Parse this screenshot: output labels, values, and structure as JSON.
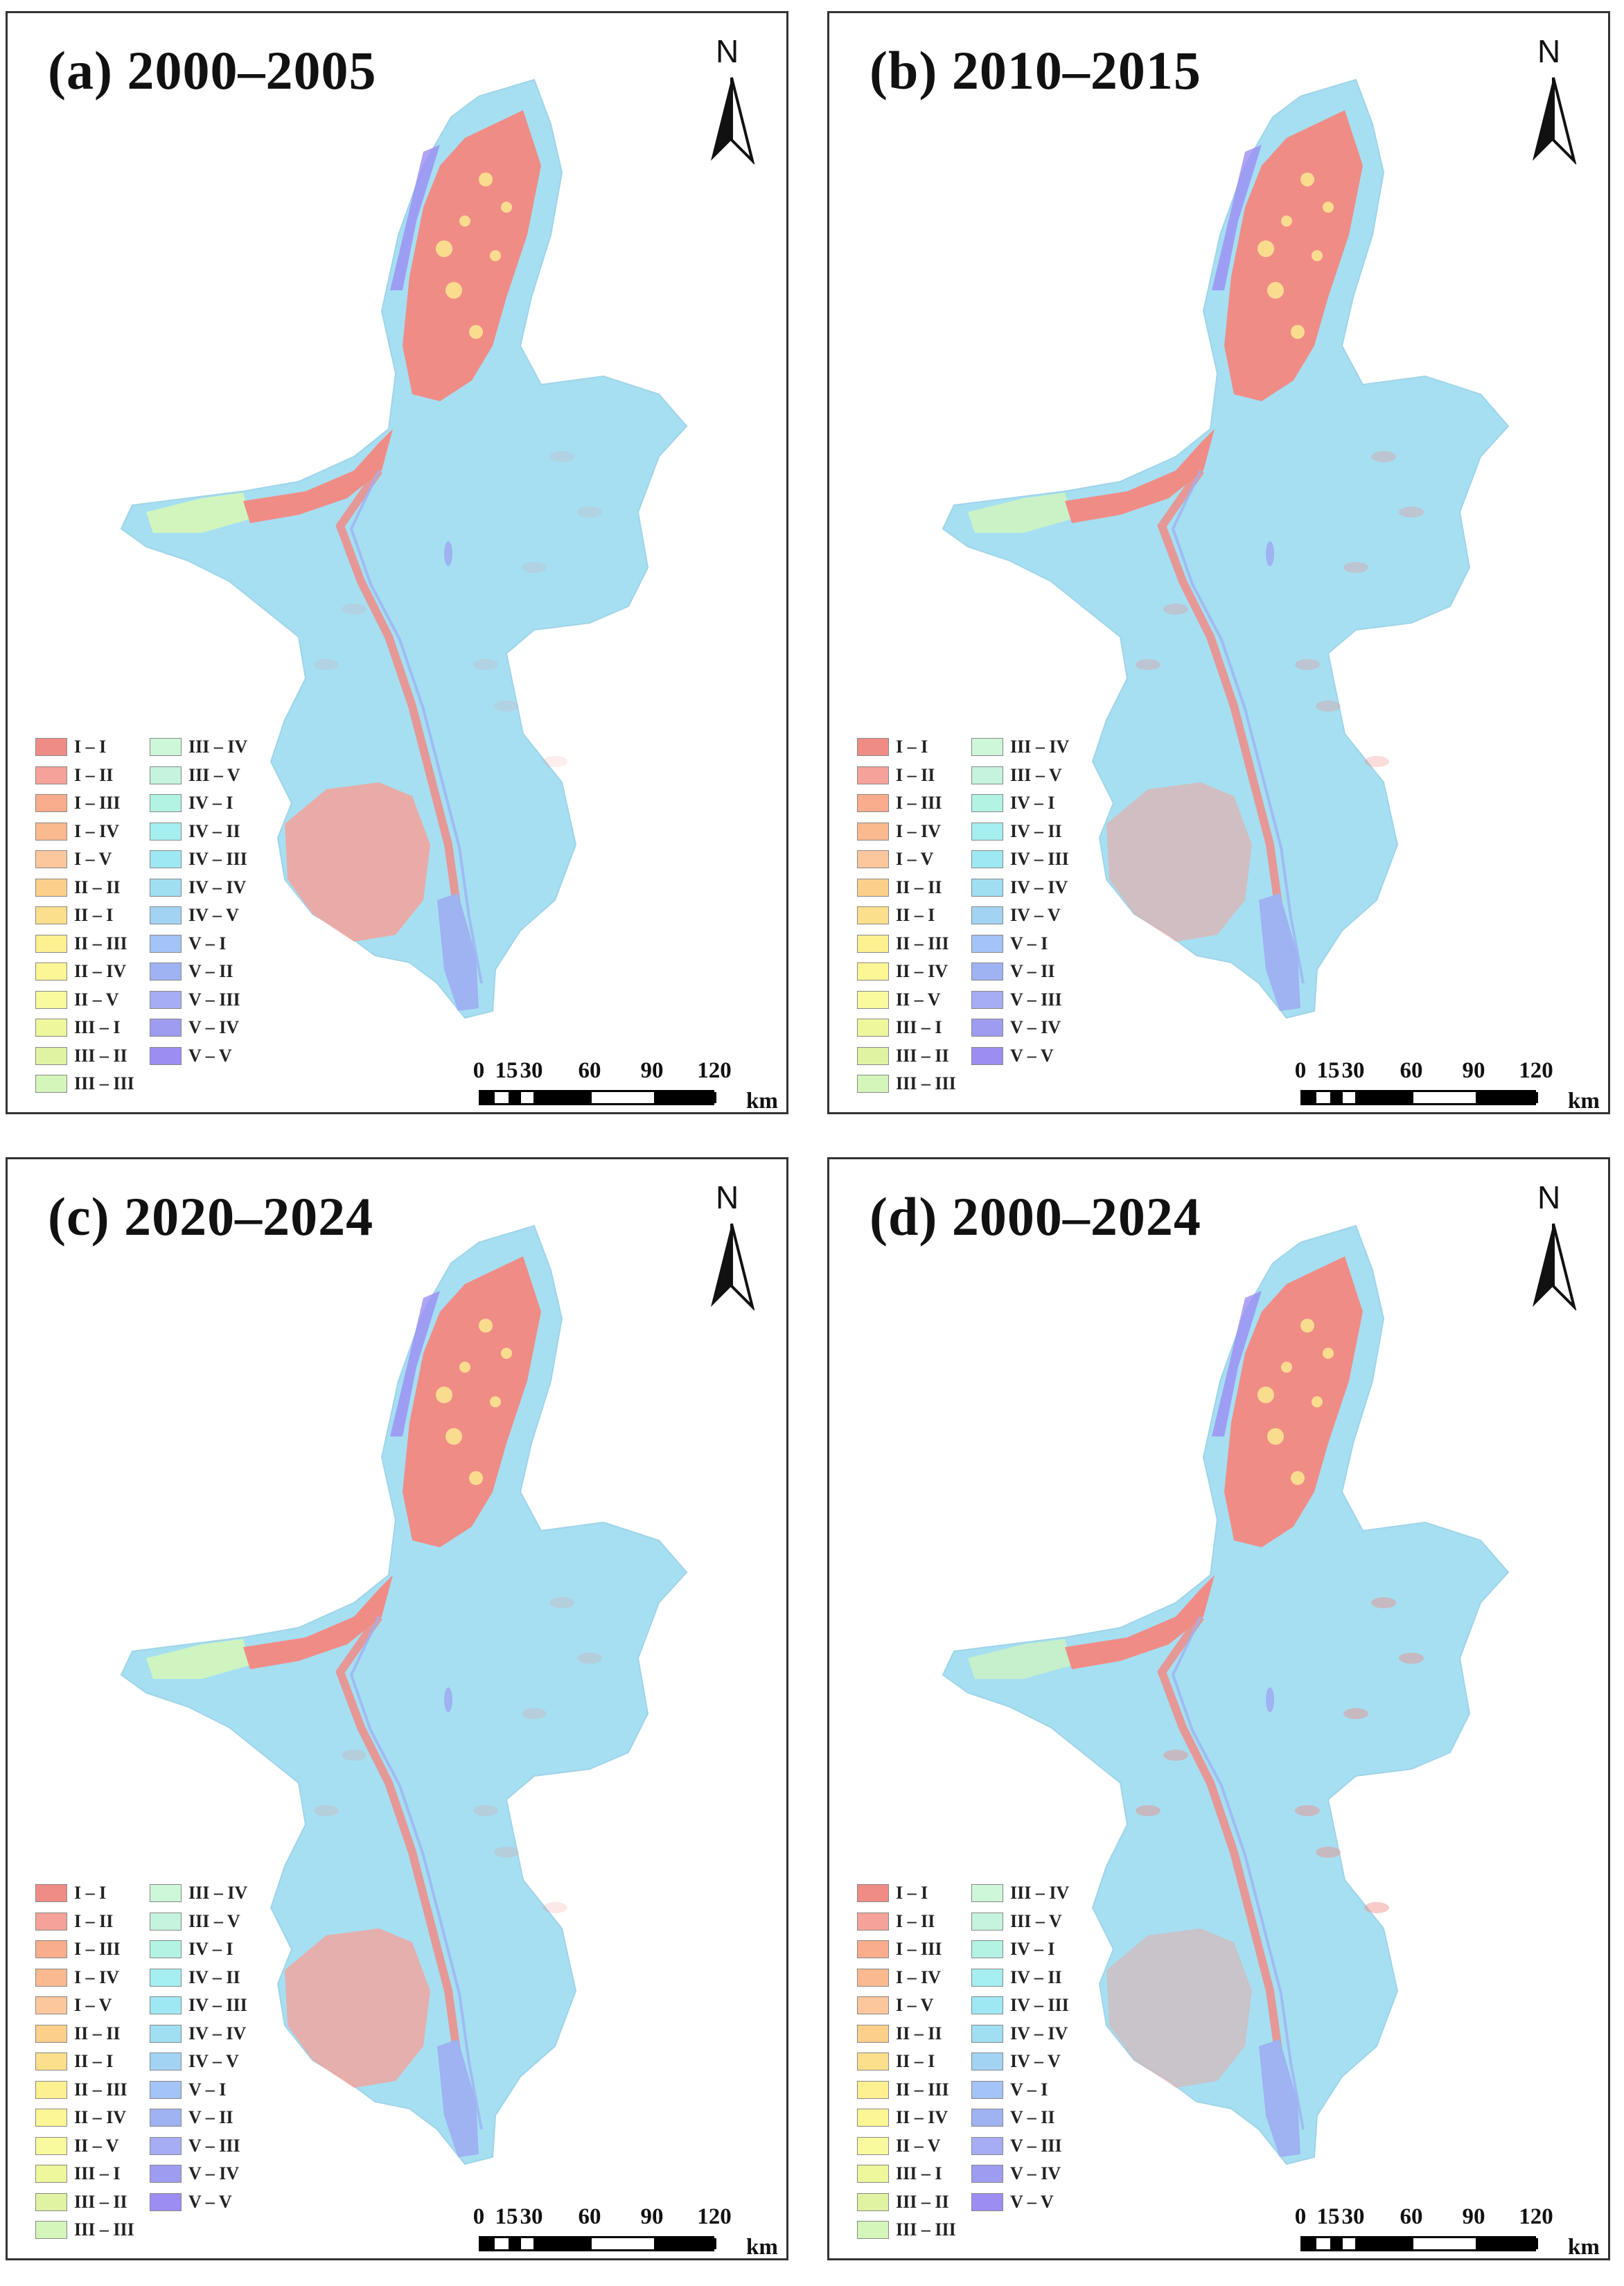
{
  "panels": [
    {
      "id": "a",
      "title": "(a) 2000–2005"
    },
    {
      "id": "b",
      "title": "(b) 2010–2015"
    },
    {
      "id": "c",
      "title": "(c) 2020–2024"
    },
    {
      "id": "d",
      "title": "(d) 2000–2024"
    }
  ],
  "north_arrow": {
    "label": "N"
  },
  "scale_bar": {
    "ticks": [
      "0",
      "15",
      "30",
      "60",
      "90",
      "120"
    ],
    "unit": "km"
  },
  "legend": {
    "column_1": [
      {
        "label": "I – I",
        "color": "#f08c86"
      },
      {
        "label": "I – II",
        "color": "#f4a29a"
      },
      {
        "label": "I – III",
        "color": "#f9ad8c"
      },
      {
        "label": "I – IV",
        "color": "#fbb98f"
      },
      {
        "label": "I – V",
        "color": "#fcc79c"
      },
      {
        "label": "II – II",
        "color": "#fcd08b"
      },
      {
        "label": "II – I",
        "color": "#fbdf8c"
      },
      {
        "label": "II – III",
        "color": "#fdf091"
      },
      {
        "label": "II – IV",
        "color": "#fdf695"
      },
      {
        "label": "II – V",
        "color": "#f9fa9e"
      },
      {
        "label": "III – I",
        "color": "#eef79c"
      },
      {
        "label": "III – II",
        "color": "#dff3a2"
      },
      {
        "label": "III – III",
        "color": "#d4f6ba"
      }
    ],
    "column_2": [
      {
        "label": "III – IV",
        "color": "#cef6d8"
      },
      {
        "label": "III – V",
        "color": "#c5f3dd"
      },
      {
        "label": "IV – I",
        "color": "#b2f3e4"
      },
      {
        "label": "IV – II",
        "color": "#a5eff0"
      },
      {
        "label": "IV – III",
        "color": "#9ee8f4"
      },
      {
        "label": "IV – IV",
        "color": "#a0def1"
      },
      {
        "label": "IV – V",
        "color": "#a2d3f3"
      },
      {
        "label": "V – I",
        "color": "#a4c3f6"
      },
      {
        "label": "V – II",
        "color": "#9fb2f1"
      },
      {
        "label": "V – III",
        "color": "#a6adf4"
      },
      {
        "label": "V – IV",
        "color": "#9e9cf0"
      },
      {
        "label": "V – V",
        "color": "#9b8df2"
      }
    ]
  },
  "colors": {
    "background_class": "#a6dff2",
    "core_class": "#f08c86",
    "transition_class": "#b2f3e4",
    "edge_class": "#9fb2f1"
  }
}
